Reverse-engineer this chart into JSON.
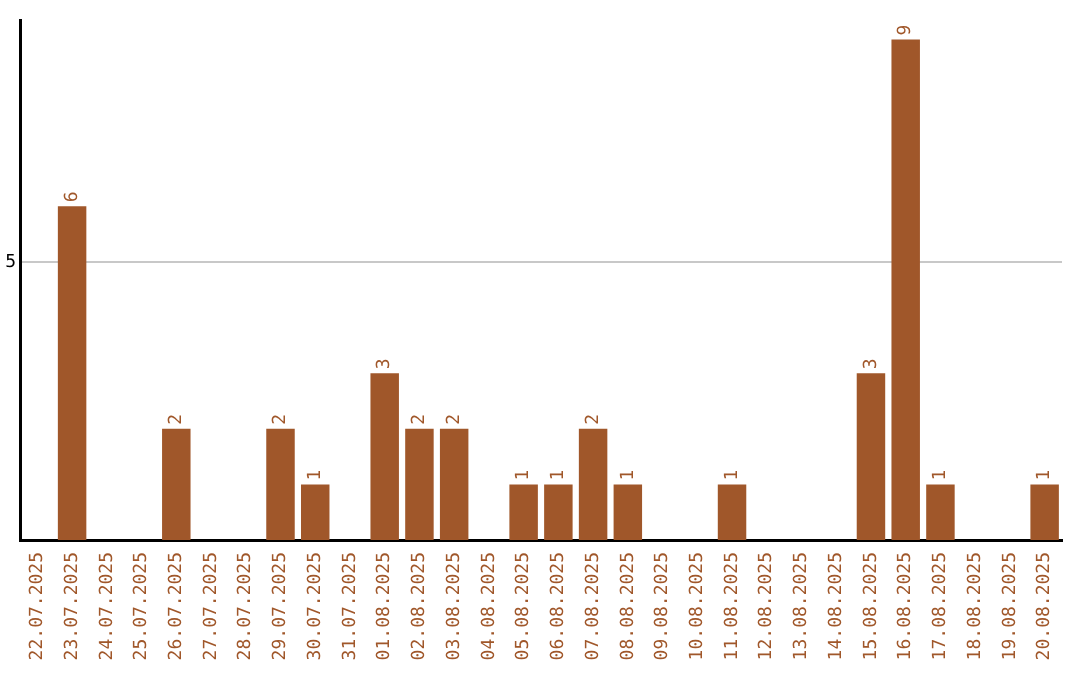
{
  "chart_data": {
    "type": "bar",
    "categories": [
      "22.07.2025",
      "23.07.2025",
      "24.07.2025",
      "25.07.2025",
      "26.07.2025",
      "27.07.2025",
      "28.07.2025",
      "29.07.2025",
      "30.07.2025",
      "31.07.2025",
      "01.08.2025",
      "02.08.2025",
      "03.08.2025",
      "04.08.2025",
      "05.08.2025",
      "06.08.2025",
      "07.08.2025",
      "08.08.2025",
      "09.08.2025",
      "10.08.2025",
      "11.08.2025",
      "12.08.2025",
      "13.08.2025",
      "14.08.2025",
      "15.08.2025",
      "16.08.2025",
      "17.08.2025",
      "18.08.2025",
      "19.08.2025",
      "20.08.2025"
    ],
    "values": [
      0,
      6,
      0,
      0,
      2,
      0,
      0,
      2,
      1,
      0,
      3,
      2,
      2,
      0,
      1,
      1,
      2,
      1,
      0,
      0,
      1,
      0,
      0,
      0,
      3,
      9,
      1,
      0,
      0,
      1
    ],
    "value_labels": [
      null,
      "6",
      null,
      null,
      "2",
      null,
      null,
      "2",
      "1",
      null,
      "3",
      "2",
      "2",
      null,
      "1",
      "1",
      "2",
      "1",
      null,
      null,
      "1",
      null,
      null,
      null,
      "3",
      "9",
      "1",
      null,
      null,
      "1"
    ],
    "color": "#a0572a",
    "ylim": [
      0,
      9.35
    ],
    "yticks": [
      5
    ],
    "grid": "y",
    "legend": false
  }
}
